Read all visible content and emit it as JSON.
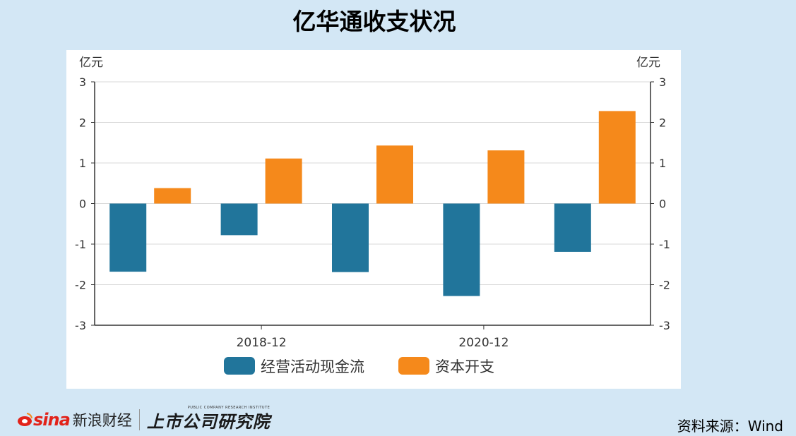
{
  "title": "亿华通收支状况",
  "footer": {
    "brand_word": "sina",
    "brand_cn": "新浪财经",
    "research_cn": "上市公司研究院",
    "research_en": "PUBLIC COMPANY RESEARCH INSTITUTE",
    "source": "资料来源：Wind"
  },
  "chart_data": {
    "type": "bar",
    "categories": [
      "",
      "2018-12",
      "",
      "2020-12",
      ""
    ],
    "series": [
      {
        "name": "经营活动现金流",
        "color": "#21759b",
        "values": [
          -1.68,
          -0.78,
          -1.69,
          -2.28,
          -1.19
        ]
      },
      {
        "name": "资本开支",
        "color": "#f5891b",
        "values": [
          0.38,
          1.11,
          1.43,
          1.31,
          2.28
        ]
      }
    ],
    "ylim": [
      -3,
      3
    ],
    "yticks": [
      3,
      2,
      1,
      0,
      -1,
      -2,
      -3
    ],
    "ylabel_left": "亿元",
    "ylabel_right": "亿元",
    "grid": true,
    "legend": "bottom"
  }
}
